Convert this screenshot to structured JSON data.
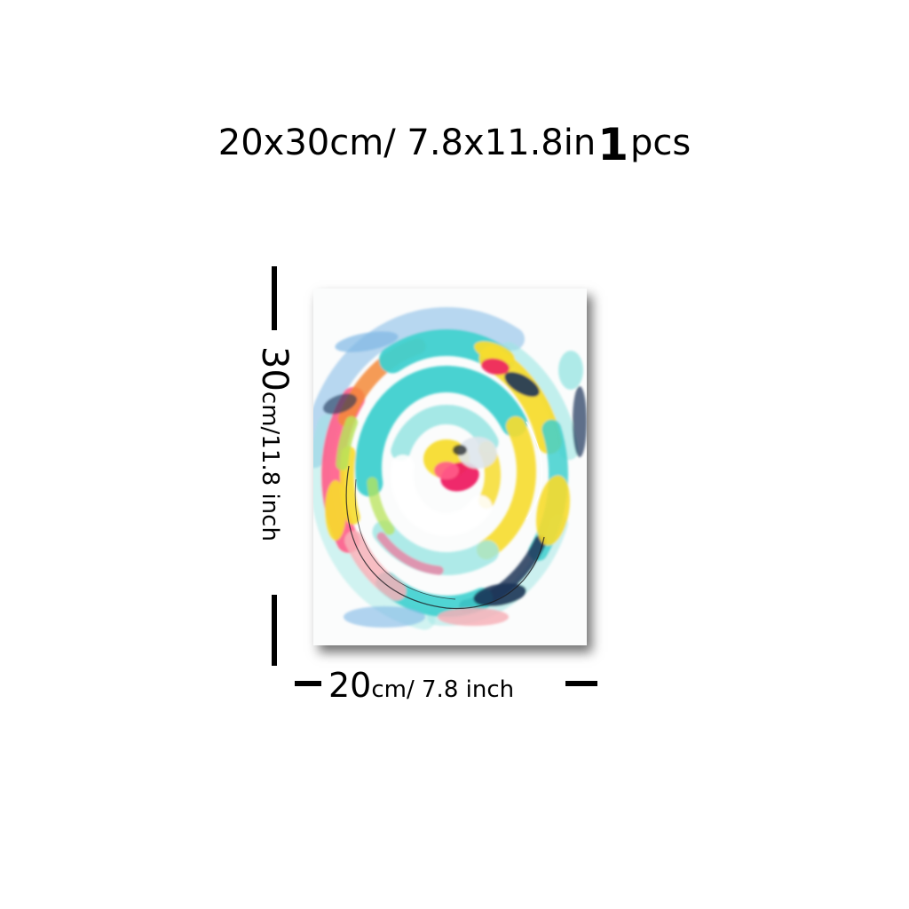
{
  "headline": {
    "size": "20x30cm/ 7.8x11.8in",
    "quantity": "1",
    "unit": "pcs"
  },
  "height_dimension": {
    "number": "30",
    "rest": "cm/11.8 inch"
  },
  "width_dimension": {
    "number": "20",
    "rest": "cm/ 7.8 inch"
  },
  "painting": {
    "subject": "abstract-swirl-painting",
    "colors": {
      "teal": "#3fd0cf",
      "light_teal": "#9be6e3",
      "yellow": "#f7dc2e",
      "pink": "#ff5c8a",
      "magenta": "#ee1f62",
      "orange": "#f58a3a",
      "navy": "#1c3558",
      "lime": "#b8e35a",
      "sky": "#7fb8e6",
      "blush": "#f7b2b9"
    }
  }
}
